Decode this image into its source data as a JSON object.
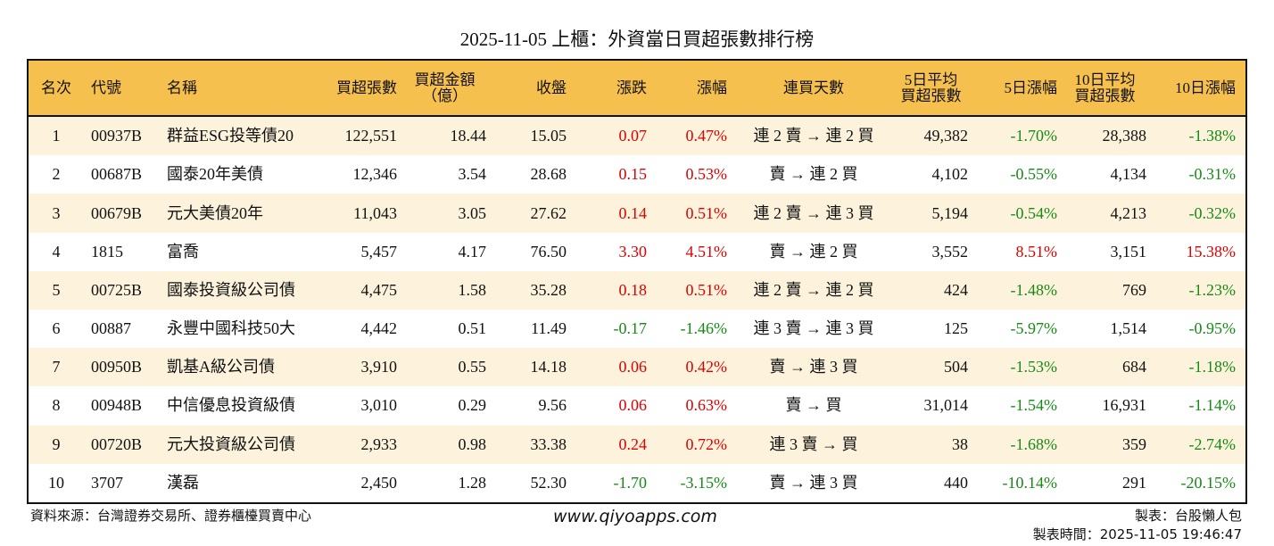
{
  "title": "2025-11-05 上櫃：外資當日買超張數排行榜",
  "colors": {
    "header_bg": "#f6c04f",
    "row_alt": "#fdf3dc",
    "up": "#e00000",
    "down": "#168a16"
  },
  "headers": [
    "名次",
    "代號",
    "名稱",
    "買超張數",
    "買超金額\n（億）",
    "收盤",
    "漲跌",
    "漲幅",
    "連買天數",
    "5日平均\n買超張數",
    "5日漲幅",
    "10日平均\n買超張數",
    "10日漲幅"
  ],
  "rows": [
    [
      "1",
      "00937B",
      "群益ESG投等債20",
      "122,551",
      "18.44",
      "15.05",
      "0.07",
      "0.47%",
      "連 2 賣 → 連 2 買",
      "49,382",
      "-1.70%",
      "28,388",
      "-1.38%"
    ],
    [
      "2",
      "00687B",
      "國泰20年美債",
      "12,346",
      "3.54",
      "28.68",
      "0.15",
      "0.53%",
      "賣 → 連 2 買",
      "4,102",
      "-0.55%",
      "4,134",
      "-0.31%"
    ],
    [
      "3",
      "00679B",
      "元大美債20年",
      "11,043",
      "3.05",
      "27.62",
      "0.14",
      "0.51%",
      "連 2 賣 → 連 3 買",
      "5,194",
      "-0.54%",
      "4,213",
      "-0.32%"
    ],
    [
      "4",
      "1815",
      "富喬",
      "5,457",
      "4.17",
      "76.50",
      "3.30",
      "4.51%",
      "賣 → 連 2 買",
      "3,552",
      "8.51%",
      "3,151",
      "15.38%"
    ],
    [
      "5",
      "00725B",
      "國泰投資級公司債",
      "4,475",
      "1.58",
      "35.28",
      "0.18",
      "0.51%",
      "連 2 賣 → 連 2 買",
      "424",
      "-1.48%",
      "769",
      "-1.23%"
    ],
    [
      "6",
      "00887",
      "永豐中國科技50大",
      "4,442",
      "0.51",
      "11.49",
      "-0.17",
      "-1.46%",
      "連 3 賣 → 連 3 買",
      "125",
      "-5.97%",
      "1,514",
      "-0.95%"
    ],
    [
      "7",
      "00950B",
      "凱基A級公司債",
      "3,910",
      "0.55",
      "14.18",
      "0.06",
      "0.42%",
      "賣 → 連 3 買",
      "504",
      "-1.53%",
      "684",
      "-1.18%"
    ],
    [
      "8",
      "00948B",
      "中信優息投資級債",
      "3,010",
      "0.29",
      "9.56",
      "0.06",
      "0.63%",
      "賣 → 買",
      "31,014",
      "-1.54%",
      "16,931",
      "-1.14%"
    ],
    [
      "9",
      "00720B",
      "元大投資級公司債",
      "2,933",
      "0.98",
      "33.38",
      "0.24",
      "0.72%",
      "連 3 賣 → 買",
      "38",
      "-1.68%",
      "359",
      "-2.74%"
    ],
    [
      "10",
      "3707",
      "漢磊",
      "2,450",
      "1.28",
      "52.30",
      "-1.70",
      "-3.15%",
      "賣 → 連 3 買",
      "440",
      "-10.14%",
      "291",
      "-20.15%"
    ]
  ],
  "footer": {
    "source": "資料來源：台灣證券交易所、證券櫃檯買賣中心",
    "website": "www.qiyoapps.com",
    "maker": "製表：台股懶人包",
    "time": "製表時間：2025-11-05 19:46:47"
  }
}
